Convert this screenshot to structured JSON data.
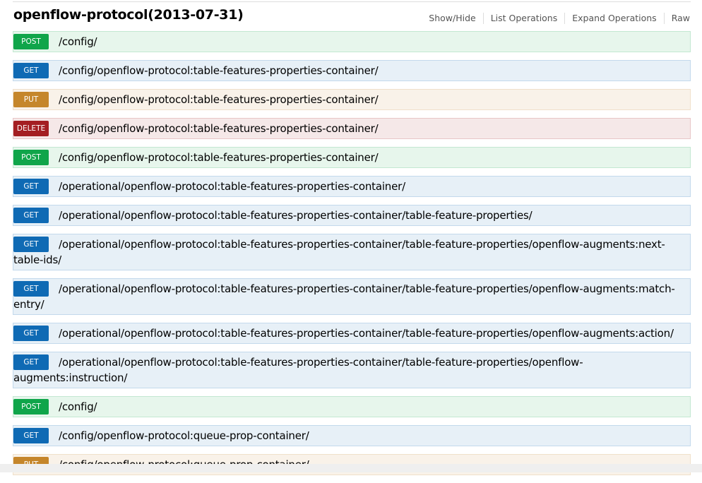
{
  "header": {
    "title": "openflow-protocol(2013-07-31)",
    "links": [
      "Show/Hide",
      "List Operations",
      "Expand Operations",
      "Raw"
    ]
  },
  "colors": {
    "post": "#10a54a",
    "get": "#0f6ab4",
    "put": "#c5862b",
    "delete": "#a41e22"
  },
  "operations": [
    {
      "method": "POST",
      "path": "/config/"
    },
    {
      "method": "GET",
      "path": "/config/openflow-protocol:table-features-properties-container/"
    },
    {
      "method": "PUT",
      "path": "/config/openflow-protocol:table-features-properties-container/"
    },
    {
      "method": "DELETE",
      "path": "/config/openflow-protocol:table-features-properties-container/"
    },
    {
      "method": "POST",
      "path": "/config/openflow-protocol:table-features-properties-container/"
    },
    {
      "method": "GET",
      "path": "/operational/openflow-protocol:table-features-properties-container/"
    },
    {
      "method": "GET",
      "path": "/operational/openflow-protocol:table-features-properties-container/table-feature-properties/"
    },
    {
      "method": "GET",
      "path": "/operational/openflow-protocol:table-features-properties-container/table-feature-properties/openflow-augments:next-table-ids/"
    },
    {
      "method": "GET",
      "path": "/operational/openflow-protocol:table-features-properties-container/table-feature-properties/openflow-augments:match-entry/"
    },
    {
      "method": "GET",
      "path": "/operational/openflow-protocol:table-features-properties-container/table-feature-properties/openflow-augments:action/"
    },
    {
      "method": "GET",
      "path": "/operational/openflow-protocol:table-features-properties-container/table-feature-properties/openflow-augments:instruction/"
    },
    {
      "method": "POST",
      "path": "/config/"
    },
    {
      "method": "GET",
      "path": "/config/openflow-protocol:queue-prop-container/"
    },
    {
      "method": "PUT",
      "path": "/config/openflow-protocol:queue-prop-container/"
    }
  ]
}
